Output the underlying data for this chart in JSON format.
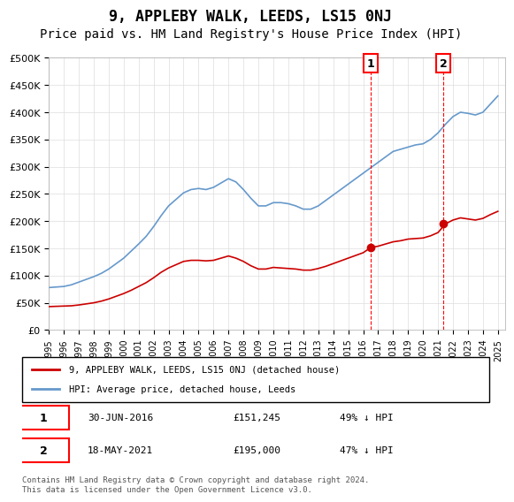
{
  "title": "9, APPLEBY WALK, LEEDS, LS15 0NJ",
  "subtitle": "Price paid vs. HM Land Registry's House Price Index (HPI)",
  "title_fontsize": 12,
  "subtitle_fontsize": 10,
  "xlabel": "",
  "ylabel": "",
  "ylim": [
    0,
    500000
  ],
  "ytick_vals": [
    0,
    50000,
    100000,
    150000,
    200000,
    250000,
    300000,
    350000,
    400000,
    450000,
    500000
  ],
  "ytick_labels": [
    "£0",
    "£50K",
    "£100K",
    "£150K",
    "£200K",
    "£250K",
    "£300K",
    "£350K",
    "£400K",
    "£450K",
    "£500K"
  ],
  "background_color": "#ffffff",
  "plot_bg_color": "#ffffff",
  "grid_color": "#dddddd",
  "hpi_color": "#6699cc",
  "property_color": "#cc0000",
  "marker1_date": 2016.5,
  "marker2_date": 2021.37,
  "marker1_price": 151245,
  "marker2_price": 195000,
  "annotation1_label": "30-JUN-2016",
  "annotation1_price": "£151,245",
  "annotation1_hpi": "49% ↓ HPI",
  "annotation2_label": "18-MAY-2021",
  "annotation2_price": "£195,000",
  "annotation2_hpi": "47% ↓ HPI",
  "legend_line1": "9, APPLEBY WALK, LEEDS, LS15 0NJ (detached house)",
  "legend_line2": "HPI: Average price, detached house, Leeds",
  "footer": "Contains HM Land Registry data © Crown copyright and database right 2024.\nThis data is licensed under the Open Government Licence v3.0.",
  "hpi_x": [
    1995,
    1995.5,
    1996,
    1996.5,
    1997,
    1997.5,
    1998,
    1998.5,
    1999,
    1999.5,
    2000,
    2000.5,
    2001,
    2001.5,
    2002,
    2002.5,
    2003,
    2003.5,
    2004,
    2004.5,
    2005,
    2005.5,
    2006,
    2006.5,
    2007,
    2007.5,
    2008,
    2008.5,
    2009,
    2009.5,
    2010,
    2010.5,
    2011,
    2011.5,
    2012,
    2012.5,
    2013,
    2013.5,
    2014,
    2014.5,
    2015,
    2015.5,
    2016,
    2016.5,
    2017,
    2017.5,
    2018,
    2018.5,
    2019,
    2019.5,
    2020,
    2020.5,
    2021,
    2021.5,
    2022,
    2022.5,
    2023,
    2023.5,
    2024,
    2024.5,
    2025
  ],
  "hpi_y": [
    78000,
    79000,
    80000,
    83000,
    88000,
    93000,
    98000,
    104000,
    112000,
    122000,
    132000,
    145000,
    158000,
    172000,
    190000,
    210000,
    228000,
    240000,
    252000,
    258000,
    260000,
    258000,
    262000,
    270000,
    278000,
    272000,
    258000,
    242000,
    228000,
    228000,
    234000,
    234000,
    232000,
    228000,
    222000,
    222000,
    228000,
    238000,
    248000,
    258000,
    268000,
    278000,
    288000,
    298000,
    308000,
    318000,
    328000,
    332000,
    336000,
    340000,
    342000,
    350000,
    362000,
    378000,
    392000,
    400000,
    398000,
    395000,
    400000,
    415000,
    430000
  ],
  "prop_x": [
    1995,
    1995.5,
    1996,
    1996.5,
    1997,
    1997.5,
    1998,
    1998.5,
    1999,
    1999.5,
    2000,
    2000.5,
    2001,
    2001.5,
    2002,
    2002.5,
    2003,
    2003.5,
    2004,
    2004.5,
    2005,
    2005.5,
    2006,
    2006.5,
    2007,
    2007.5,
    2008,
    2008.5,
    2009,
    2009.5,
    2010,
    2010.5,
    2011,
    2011.5,
    2012,
    2012.5,
    2013,
    2013.5,
    2014,
    2014.5,
    2015,
    2015.5,
    2016,
    2016.5,
    2017,
    2017.5,
    2018,
    2018.5,
    2019,
    2019.5,
    2020,
    2020.5,
    2021,
    2021.5,
    2022,
    2022.5,
    2023,
    2023.5,
    2024,
    2024.5,
    2025
  ],
  "prop_y": [
    43000,
    43500,
    44000,
    44500,
    46000,
    48000,
    50000,
    53000,
    57000,
    62000,
    67000,
    73000,
    80000,
    87000,
    96000,
    106000,
    114000,
    120000,
    126000,
    128000,
    128000,
    127000,
    128000,
    132000,
    136000,
    132000,
    126000,
    118000,
    112000,
    112000,
    115000,
    114000,
    113000,
    112000,
    110000,
    110000,
    113000,
    117000,
    122000,
    127000,
    132000,
    137000,
    142000,
    151245,
    154000,
    158000,
    162000,
    164000,
    167000,
    168000,
    169000,
    173000,
    179000,
    195000,
    202000,
    206000,
    204000,
    202000,
    205000,
    212000,
    218000
  ]
}
